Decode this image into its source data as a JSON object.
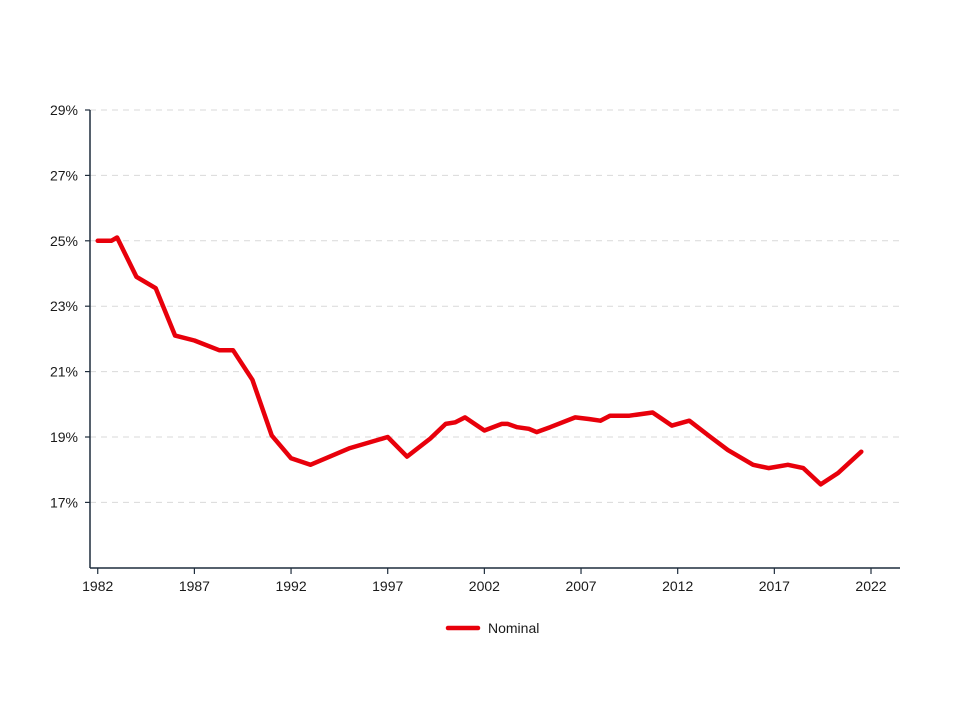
{
  "chart_data": {
    "type": "line",
    "title": "",
    "xlabel": "",
    "ylabel": "",
    "xlim": [
      1981.6,
      2023.5
    ],
    "ylim": [
      15,
      29
    ],
    "x_ticks": [
      1982,
      1987,
      1992,
      1997,
      2002,
      2007,
      2012,
      2017,
      2022
    ],
    "x_tick_labels": [
      "1982",
      "1987",
      "1992",
      "1997",
      "2002",
      "2007",
      "2012",
      "2017",
      "2022"
    ],
    "y_ticks": [
      17,
      19,
      21,
      23,
      25,
      27,
      29
    ],
    "y_tick_labels": [
      "17%",
      "19%",
      "21%",
      "23%",
      "25%",
      "27%",
      "29%"
    ],
    "grid": "horizontal dashed",
    "legend_position": "bottom-center",
    "series": [
      {
        "name": "Nominal",
        "color": "#e8000b",
        "x": [
          1982,
          1982.7,
          1983,
          1984,
          1985,
          1986,
          1987,
          1988.3,
          1989,
          1990,
          1991,
          1992,
          1993,
          1995,
          1997,
          1998,
          1999.2,
          2000,
          2000.5,
          2001,
          2002,
          2002.9,
          2003.2,
          2003.7,
          2004.3,
          2004.7,
          2005.4,
          2006.7,
          2007.4,
          2008,
          2008.5,
          2009.5,
          2010.7,
          2011.7,
          2012.6,
          2013.7,
          2014.6,
          2015.9,
          2016.7,
          2017.7,
          2018.5,
          2019.4,
          2020.3,
          2021.5
        ],
        "values": [
          25.0,
          25.0,
          25.1,
          23.9,
          23.55,
          22.1,
          21.95,
          21.65,
          21.65,
          20.75,
          19.05,
          18.35,
          18.15,
          18.65,
          19.0,
          18.4,
          18.95,
          19.4,
          19.45,
          19.6,
          19.2,
          19.4,
          19.4,
          19.3,
          19.25,
          19.15,
          19.3,
          19.6,
          19.55,
          19.5,
          19.65,
          19.65,
          19.75,
          19.35,
          19.5,
          19.0,
          18.6,
          18.15,
          18.05,
          18.15,
          18.05,
          17.55,
          17.9,
          18.55
        ]
      }
    ]
  }
}
